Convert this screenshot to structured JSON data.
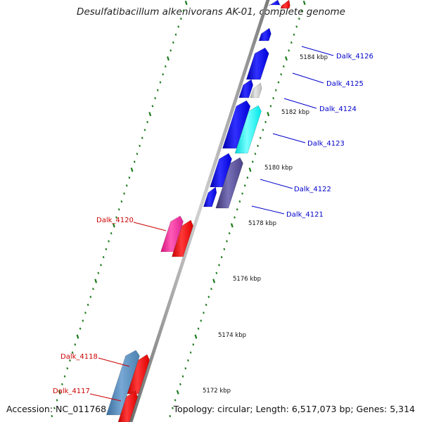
{
  "title": "Desulfatibacillum alkenivorans AK-01, complete genome",
  "accession": "Accession: NC_011768",
  "topology": "Topology: circular; Length: 6,517,073 bp; Genes: 5,314",
  "colors": {
    "backbone": "#8c8c8c",
    "tick": "#1e7a1e",
    "forward_label": "#cc0000",
    "reverse_label": "#0000cc"
  },
  "scale_labels": [
    "5184 kbp",
    "5182 kbp",
    "5180 kbp",
    "5178 kbp",
    "5176 kbp",
    "5174 kbp",
    "5172 kbp"
  ],
  "gene_labels": {
    "reverse": [
      "Dalk_4126",
      "Dalk_4125",
      "Dalk_4124",
      "Dalk_4123",
      "Dalk_4122",
      "Dalk_4121"
    ],
    "forward": [
      "Dalk_4120",
      "Dalk_4118",
      "Dalk_4117"
    ]
  }
}
